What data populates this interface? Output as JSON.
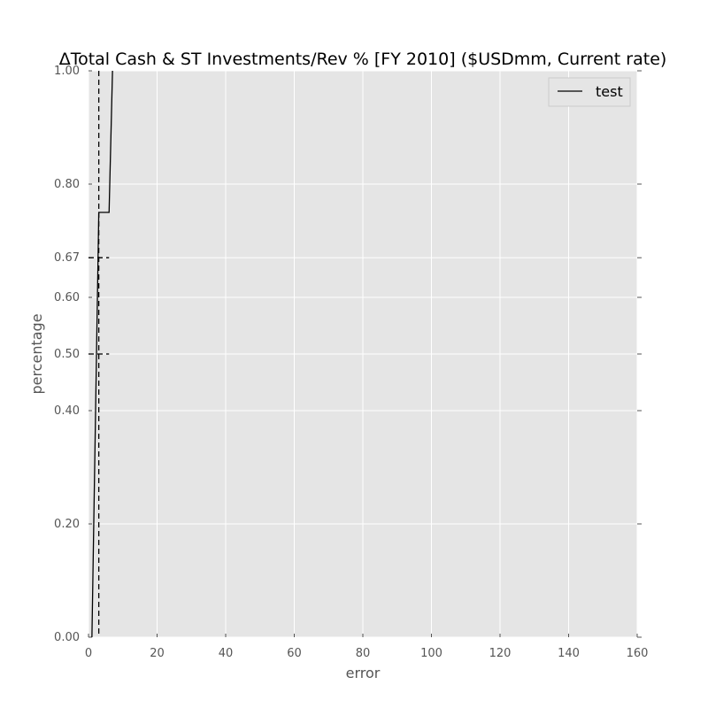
{
  "chart_data": {
    "type": "line",
    "title": "ΔTotal Cash & ST Investments/Rev % [FY 2010] ($USDmm, Current rate)",
    "xlabel": "error",
    "ylabel": "percentage",
    "xlim": [
      0,
      160
    ],
    "ylim": [
      0,
      1
    ],
    "x_ticks": [
      0,
      20,
      40,
      60,
      80,
      100,
      120,
      140,
      160
    ],
    "y_ticks": [
      0.0,
      0.2,
      0.4,
      0.5,
      0.6,
      0.67,
      0.8,
      1.0
    ],
    "y_tick_labels": [
      "0.00",
      "0.20",
      "0.40",
      "0.50",
      "0.60",
      "0.67",
      "0.80",
      "1.00"
    ],
    "grid": true,
    "legend_position": "top-right",
    "colors": {
      "plot_background": "#e5e5e5",
      "grid": "#ffffff",
      "line": "#000000"
    },
    "series": [
      {
        "name": "test",
        "style": "solid",
        "points": [
          [
            1,
            0
          ],
          [
            3,
            0.75
          ],
          [
            6,
            0.75
          ],
          [
            7,
            1.0
          ]
        ]
      }
    ],
    "reference_lines": [
      {
        "orientation": "vertical",
        "x": 3,
        "style": "dashed"
      },
      {
        "orientation": "horizontal-segment",
        "y": 0.5,
        "x_range": [
          0,
          6
        ],
        "style": "dashed"
      },
      {
        "orientation": "horizontal-segment",
        "y": 0.67,
        "x_range": [
          0,
          6
        ],
        "style": "dashed"
      }
    ]
  }
}
